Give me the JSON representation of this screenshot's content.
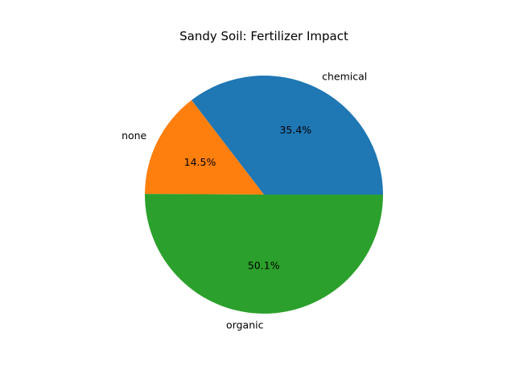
{
  "chart_data": {
    "type": "pie",
    "title": "Sandy Soil: Fertilizer Impact",
    "labels": [
      "chemical",
      "none",
      "organic"
    ],
    "values": [
      35.4,
      14.5,
      50.1
    ],
    "percent_labels": [
      "35.4%",
      "14.5%",
      "50.1%"
    ],
    "colors": [
      "#1f77b4",
      "#ff7f0e",
      "#2ca02c"
    ],
    "start_angle_deg": 0,
    "direction": "counterclockwise",
    "legend": "none"
  }
}
